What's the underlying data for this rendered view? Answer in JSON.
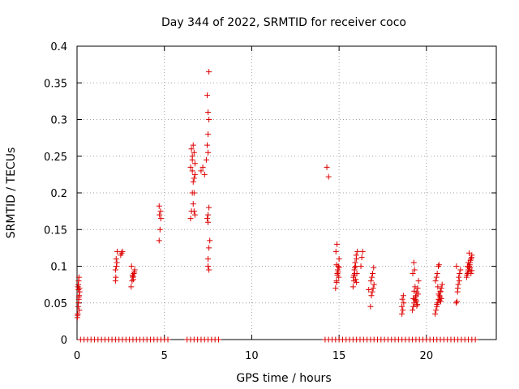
{
  "chart_data": {
    "type": "scatter",
    "title": "Day 344 of 2022, SRMTID for receiver coco",
    "xlabel": "GPS time / hours",
    "ylabel": "SRMTID / TECUs",
    "xlim": [
      0,
      24
    ],
    "ylim": [
      0,
      0.4
    ],
    "xticks": [
      0,
      5,
      10,
      15,
      20
    ],
    "xtick_labels": [
      "0",
      "5",
      "10",
      "15",
      "20"
    ],
    "yticks": [
      0,
      0.05,
      0.1,
      0.15,
      0.2,
      0.25,
      0.3,
      0.35,
      0.4
    ],
    "ytick_labels": [
      "0",
      "0.05",
      "0.1",
      "0.15",
      "0.2",
      "0.25",
      "0.3",
      "0.35",
      "0.4"
    ],
    "grid": true,
    "marker": "plus",
    "color": "#dd0000",
    "series": [
      {
        "name": "SRMTID",
        "x": [
          0.02,
          0.04,
          0.06,
          0.08,
          0.1,
          0.12,
          0.14,
          0.05,
          0.07,
          0.09,
          0.11,
          0.13,
          0.03,
          0.15,
          0.1,
          0.08,
          2.2,
          2.22,
          2.25,
          2.28,
          2.3,
          2.2,
          2.24,
          2.5,
          2.55,
          2.6,
          3.1,
          3.15,
          3.2,
          3.25,
          3.3,
          3.12,
          3.18,
          3.22,
          3.28,
          3.2,
          4.7,
          4.75,
          4.8,
          4.72,
          4.78,
          4.7,
          6.5,
          6.55,
          6.6,
          6.65,
          6.7,
          6.75,
          6.5,
          6.6,
          6.7,
          6.55,
          6.65,
          6.75,
          6.6,
          6.7,
          6.65,
          6.7,
          6.75,
          6.6,
          7.1,
          7.2,
          7.3,
          7.4,
          7.5,
          7.45,
          7.5,
          7.55,
          7.5,
          7.45,
          7.55,
          7.5,
          7.45,
          7.55,
          7.5,
          7.6,
          7.55,
          7.5,
          7.5,
          7.55,
          14.3,
          14.4,
          14.8,
          14.85,
          14.9,
          14.95,
          15.0,
          14.82,
          14.88,
          14.92,
          14.98,
          14.86,
          14.9,
          14.95,
          15.0,
          14.85,
          15.8,
          15.85,
          15.9,
          15.95,
          16.0,
          16.05,
          15.82,
          15.88,
          15.92,
          15.98,
          16.02,
          15.85,
          15.9,
          15.95,
          16.0,
          16.3,
          16.35,
          16.25,
          16.8,
          16.85,
          16.9,
          16.95,
          17.0,
          16.82,
          16.88,
          16.92,
          16.98,
          16.7,
          18.6,
          18.65,
          18.7,
          18.62,
          18.68,
          18.6,
          19.2,
          19.25,
          19.3,
          19.35,
          19.4,
          19.45,
          19.5,
          19.55,
          19.22,
          19.28,
          19.32,
          19.38,
          19.42,
          19.48,
          19.52,
          19.3,
          19.35,
          19.4,
          19.25,
          19.45,
          20.5,
          20.55,
          20.6,
          20.65,
          20.7,
          20.75,
          20.8,
          20.85,
          20.9,
          20.52,
          20.58,
          20.62,
          20.68,
          20.72,
          20.78,
          20.82,
          20.6,
          20.7,
          20.8,
          20.65,
          20.75,
          20.85,
          21.7,
          21.75,
          21.8,
          21.85,
          21.9,
          21.95,
          21.72,
          21.78,
          21.82,
          21.88,
          22.3,
          22.35,
          22.4,
          22.45,
          22.5,
          22.55,
          22.6,
          22.32,
          22.38,
          22.42,
          22.48,
          22.52,
          22.58,
          22.35,
          22.45,
          22.55,
          22.4,
          22.5,
          22.6,
          22.45,
          0.2,
          0.4,
          0.6,
          0.8,
          1.0,
          1.2,
          1.4,
          1.6,
          1.8,
          2.0,
          2.2,
          2.4,
          2.6,
          2.8,
          3.0,
          3.2,
          3.4,
          3.6,
          3.8,
          4.0,
          4.2,
          4.4,
          4.6,
          4.8,
          5.0,
          5.2,
          6.3,
          6.5,
          6.7,
          6.9,
          7.1,
          7.3,
          7.5,
          7.7,
          7.9,
          8.1,
          14.2,
          14.4,
          14.6,
          14.8,
          15.0,
          15.2,
          15.4,
          15.6,
          15.8,
          16.0,
          16.2,
          16.4,
          16.6,
          16.8,
          17.0,
          17.2,
          17.4,
          17.6,
          17.8,
          18.0,
          18.2,
          18.4,
          18.6,
          18.8,
          19.0,
          19.2,
          19.4,
          19.6,
          19.8,
          20.0,
          20.2,
          20.4,
          20.6,
          20.8,
          21.0,
          21.2,
          21.4,
          21.6,
          21.8,
          22.0,
          22.2,
          22.4,
          22.6,
          22.8
        ],
        "y": [
          0.03,
          0.035,
          0.045,
          0.05,
          0.055,
          0.06,
          0.07,
          0.072,
          0.075,
          0.08,
          0.085,
          0.04,
          0.033,
          0.065,
          0.058,
          0.068,
          0.08,
          0.085,
          0.1,
          0.105,
          0.12,
          0.095,
          0.11,
          0.115,
          0.118,
          0.12,
          0.072,
          0.08,
          0.085,
          0.09,
          0.095,
          0.1,
          0.088,
          0.082,
          0.092,
          0.086,
          0.135,
          0.15,
          0.165,
          0.17,
          0.175,
          0.182,
          0.165,
          0.175,
          0.2,
          0.215,
          0.22,
          0.225,
          0.235,
          0.245,
          0.255,
          0.26,
          0.265,
          0.24,
          0.23,
          0.2,
          0.185,
          0.175,
          0.17,
          0.25,
          0.23,
          0.235,
          0.225,
          0.245,
          0.255,
          0.265,
          0.28,
          0.3,
          0.31,
          0.333,
          0.365,
          0.17,
          0.165,
          0.18,
          0.16,
          0.135,
          0.125,
          0.11,
          0.1,
          0.095,
          0.235,
          0.222,
          0.07,
          0.08,
          0.09,
          0.1,
          0.11,
          0.12,
          0.13,
          0.095,
          0.085,
          0.078,
          0.088,
          0.092,
          0.098,
          0.102,
          0.072,
          0.08,
          0.09,
          0.1,
          0.11,
          0.12,
          0.085,
          0.095,
          0.105,
          0.115,
          0.09,
          0.088,
          0.098,
          0.082,
          0.078,
          0.112,
          0.12,
          0.1,
          0.045,
          0.06,
          0.065,
          0.07,
          0.075,
          0.08,
          0.085,
          0.09,
          0.098,
          0.068,
          0.035,
          0.04,
          0.05,
          0.055,
          0.06,
          0.045,
          0.04,
          0.045,
          0.05,
          0.055,
          0.06,
          0.065,
          0.07,
          0.08,
          0.09,
          0.105,
          0.095,
          0.058,
          0.052,
          0.048,
          0.062,
          0.066,
          0.072,
          0.054,
          0.056,
          0.046,
          0.035,
          0.04,
          0.045,
          0.05,
          0.055,
          0.06,
          0.065,
          0.07,
          0.075,
          0.08,
          0.085,
          0.09,
          0.1,
          0.102,
          0.058,
          0.052,
          0.048,
          0.062,
          0.066,
          0.072,
          0.054,
          0.056,
          0.05,
          0.052,
          0.07,
          0.085,
          0.09,
          0.095,
          0.1,
          0.065,
          0.075,
          0.08,
          0.085,
          0.09,
          0.095,
          0.1,
          0.105,
          0.11,
          0.115,
          0.088,
          0.092,
          0.098,
          0.102,
          0.108,
          0.112,
          0.1,
          0.095,
          0.09,
          0.105,
          0.098,
          0.094,
          0.118,
          0,
          0,
          0,
          0,
          0,
          0,
          0,
          0,
          0,
          0,
          0,
          0,
          0,
          0,
          0,
          0,
          0,
          0,
          0,
          0,
          0,
          0,
          0,
          0,
          0,
          0,
          0,
          0,
          0,
          0,
          0,
          0,
          0,
          0,
          0,
          0,
          0,
          0,
          0,
          0,
          0,
          0,
          0,
          0,
          0,
          0,
          0,
          0,
          0,
          0,
          0,
          0,
          0,
          0,
          0,
          0,
          0,
          0,
          0,
          0,
          0,
          0,
          0,
          0,
          0,
          0,
          0,
          0,
          0,
          0,
          0,
          0,
          0,
          0,
          0,
          0,
          0,
          0,
          0,
          0
        ]
      }
    ]
  }
}
